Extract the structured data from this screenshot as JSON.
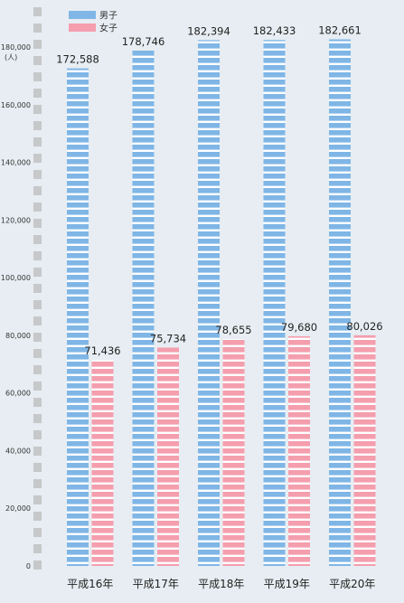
{
  "chart_data": {
    "type": "bar",
    "title": "",
    "xlabel": "",
    "ylabel": "",
    "unit_label": "(人)",
    "categories": [
      "平成16年",
      "平成17年",
      "平成18年",
      "平成19年",
      "平成20年"
    ],
    "series": [
      {
        "name": "男子",
        "color": "#7fb6e6",
        "values": [
          172588,
          178746,
          182394,
          182433,
          182661
        ],
        "labels": [
          "172,588",
          "178,746",
          "182,394",
          "182,433",
          "182,661"
        ]
      },
      {
        "name": "女子",
        "color": "#f49eae",
        "values": [
          71436,
          75734,
          78655,
          79680,
          80026
        ],
        "labels": [
          "71,436",
          "75,734",
          "78,655",
          "79,680",
          "80,026"
        ]
      }
    ],
    "ylim": [
      0,
      190000
    ],
    "yticks": [
      0,
      20000,
      40000,
      60000,
      80000,
      100000,
      120000,
      140000,
      160000,
      180000
    ],
    "ytick_labels": [
      "0",
      "20,000",
      "40,000",
      "60,000",
      "80,000",
      "100,000",
      "120,000",
      "140,000",
      "160,000",
      "180,000"
    ],
    "legend_position": "top-left",
    "background_color": "#e7edf2",
    "grid": false
  }
}
